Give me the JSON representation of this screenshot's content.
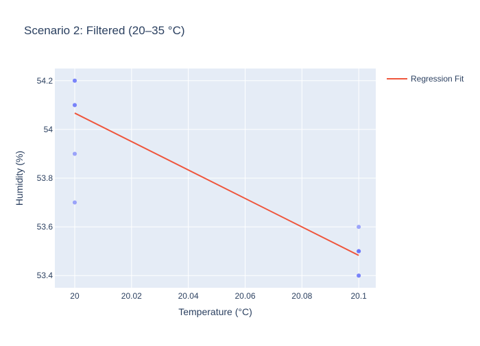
{
  "chart_data": {
    "type": "scatter",
    "title": "Scenario 2: Filtered (20–35 °C)",
    "xlabel": "Temperature (°C)",
    "ylabel": "Humidity (%)",
    "xlim": [
      19.993,
      20.106
    ],
    "ylim": [
      53.35,
      54.25
    ],
    "x_ticks": [
      20,
      20.02,
      20.04,
      20.06,
      20.08,
      20.1
    ],
    "x_tick_labels": [
      "20",
      "20.02",
      "20.04",
      "20.06",
      "20.08",
      "20.1"
    ],
    "y_ticks": [
      53.4,
      53.6,
      53.8,
      54,
      54.2
    ],
    "y_tick_labels": [
      "53.4",
      "53.6",
      "53.8",
      "54",
      "54.2"
    ],
    "grid": true,
    "legend_position": "top-right",
    "colors": {
      "plot_background": "#e5ecf6",
      "grid": "#ffffff",
      "points": "#636efa",
      "fit_line": "#ef553b",
      "text": "#2a3f5f"
    },
    "series": [
      {
        "type": "scatter",
        "x": [
          20.0,
          20.0,
          20.0,
          20.0,
          20.0,
          20.0,
          20.1,
          20.1,
          20.1,
          20.1,
          20.1,
          20.1
        ],
        "y": [
          54.2,
          54.2,
          54.1,
          54.1,
          53.9,
          53.7,
          53.6,
          53.5,
          53.5,
          53.4,
          53.4,
          53.5
        ]
      },
      {
        "name": "Regression Fit",
        "type": "line",
        "x": [
          20.0,
          20.1
        ],
        "y": [
          54.067,
          53.483
        ]
      }
    ]
  }
}
